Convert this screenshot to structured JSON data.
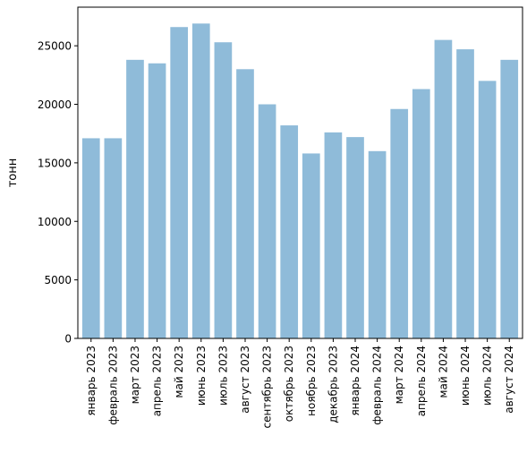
{
  "chart_data": {
    "type": "bar",
    "categories": [
      "январь 2023",
      "февраль 2023",
      "март 2023",
      "апрель 2023",
      "май 2023",
      "июнь 2023",
      "июль 2023",
      "август 2023",
      "сентябрь 2023",
      "октябрь 2023",
      "ноябрь 2023",
      "декабрь 2023",
      "январь 2024",
      "февраль 2024",
      "март 2024",
      "апрель 2024",
      "май 2024",
      "июнь 2024",
      "июль 2024",
      "август 2024"
    ],
    "values": [
      17100,
      17100,
      23800,
      23500,
      26600,
      26900,
      25300,
      23000,
      20000,
      18200,
      15800,
      17600,
      17200,
      16000,
      19600,
      21300,
      25500,
      24700,
      22000,
      23800
    ],
    "title": "",
    "xlabel": "",
    "ylabel": "тонн",
    "ylim": [
      0,
      28300
    ],
    "yticks": [
      0,
      5000,
      10000,
      15000,
      20000,
      25000
    ],
    "bar_color": "#8fbbd9",
    "grid": false,
    "legend": false
  }
}
